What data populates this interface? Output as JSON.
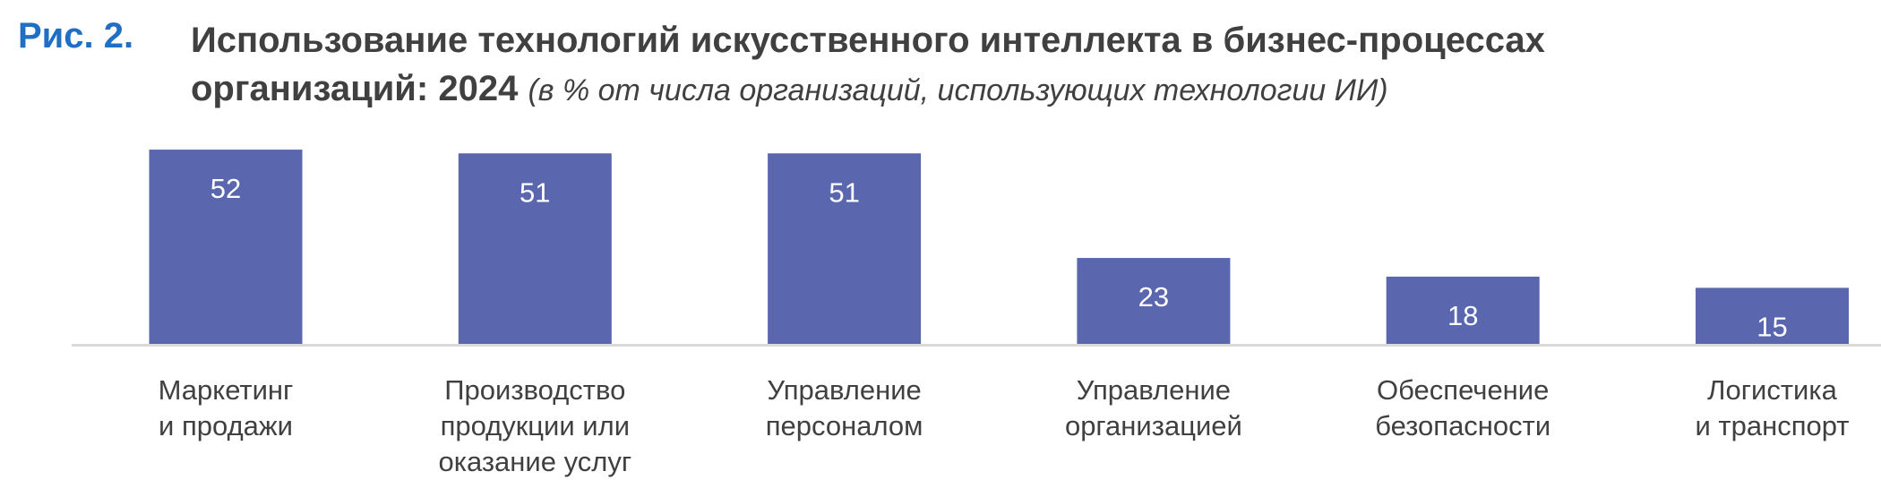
{
  "figure_label": "Рис. 2.",
  "chart_data": {
    "type": "bar",
    "title_line1": "Использование технологий искусственного интеллекта в бизнес-процессах",
    "title_line2": "организаций: 2024",
    "subtitle": "(в % от числа организаций, использующих технологии ИИ)",
    "categories": [
      [
        "Маркетинг",
        "и продажи"
      ],
      [
        "Производство",
        "продукции или",
        "оказание услуг"
      ],
      [
        "Управление",
        "персоналом"
      ],
      [
        "Управление",
        "организацией"
      ],
      [
        "Обеспечение",
        "безопасности"
      ],
      [
        "Логистика",
        "и транспорт"
      ]
    ],
    "values": [
      52,
      51,
      51,
      23,
      18,
      15
    ],
    "data_labels": [
      "52",
      "51",
      "51",
      "23",
      "18",
      "15"
    ],
    "ylim": [
      0,
      52
    ],
    "grid": false,
    "legend": "none",
    "colors": {
      "bar": "#5a67ae",
      "figure_label": "#1f6fc5",
      "text": "#404040",
      "axis": "#d9d9d9"
    }
  }
}
